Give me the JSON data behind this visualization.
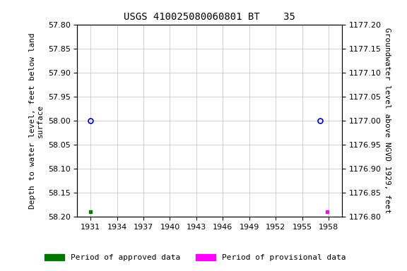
{
  "title": "USGS 410025080060801 BT    35",
  "left_ylabel": "Depth to water level, feet below land\nsurface",
  "right_ylabel": "Groundwater level above NGVD 1929, feet",
  "xlim": [
    1929.5,
    1959.5
  ],
  "xticks": [
    1931,
    1934,
    1937,
    1940,
    1943,
    1946,
    1949,
    1952,
    1955,
    1958
  ],
  "ylim_left_top": 57.8,
  "ylim_left_bottom": 58.2,
  "ylim_right_top": 1177.2,
  "ylim_right_bottom": 1176.8,
  "left_yticks": [
    57.8,
    57.85,
    57.9,
    57.95,
    58.0,
    58.05,
    58.1,
    58.15,
    58.2
  ],
  "right_yticks": [
    1176.8,
    1176.85,
    1176.9,
    1176.95,
    1177.0,
    1177.05,
    1177.1,
    1177.15,
    1177.2
  ],
  "approved_points_x": [
    1931.0,
    1957.0
  ],
  "approved_points_y": [
    58.0,
    58.0
  ],
  "approved_marker_color": "#0000cc",
  "approved_bar_x": 1931.0,
  "approved_bar_y": 58.19,
  "provisional_bar_x": 1957.8,
  "provisional_bar_y": 58.19,
  "approved_legend_color": "#007700",
  "provisional_legend_color": "#ff00ff",
  "legend_approved_label": "Period of approved data",
  "legend_provisional_label": "Period of provisional data",
  "bg_color": "#ffffff",
  "grid_color": "#c0c0c0",
  "title_fontsize": 10,
  "label_fontsize": 8,
  "tick_fontsize": 8
}
